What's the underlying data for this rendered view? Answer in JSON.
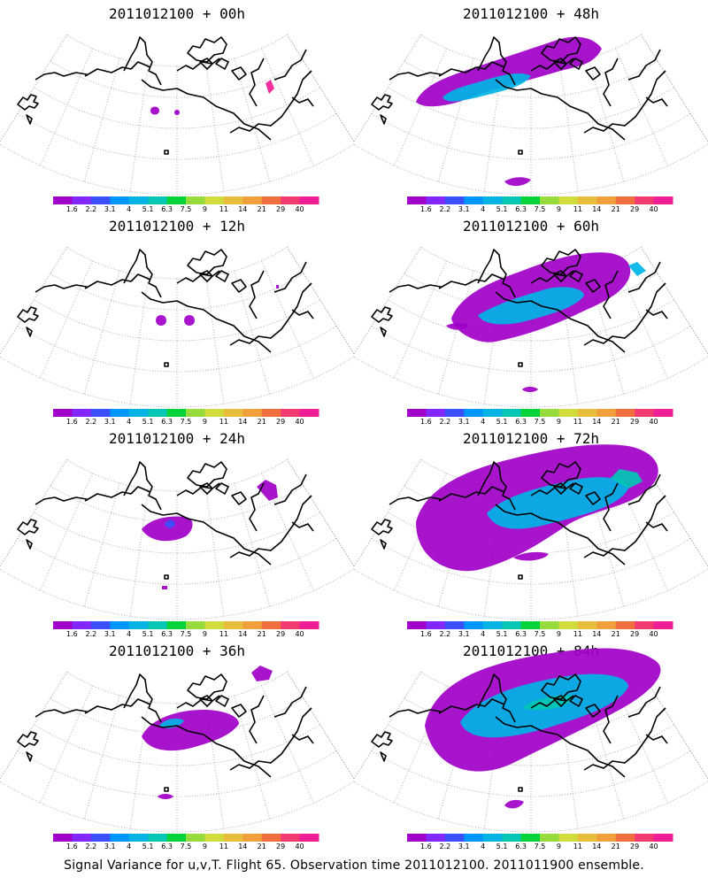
{
  "panels": [
    {
      "title": "2011012100 + 00h",
      "lead": "00h"
    },
    {
      "title": "2011012100 + 48h",
      "lead": "48h"
    },
    {
      "title": "2011012100 + 12h",
      "lead": "12h"
    },
    {
      "title": "2011012100 + 60h",
      "lead": "60h"
    },
    {
      "title": "2011012100 + 24h",
      "lead": "24h"
    },
    {
      "title": "2011012100 + 72h",
      "lead": "72h"
    },
    {
      "title": "2011012100 + 36h",
      "lead": "36h"
    },
    {
      "title": "2011012100 + 84h",
      "lead": "84h"
    }
  ],
  "colorbar": {
    "labels": [
      "1.6",
      "2.2",
      "3.1",
      "4",
      "5.1",
      "6.3",
      "7.5",
      "9",
      "11",
      "14",
      "21",
      "29",
      "40"
    ],
    "colors": [
      "#a000c8",
      "#8228ff",
      "#3c50ff",
      "#0096ff",
      "#00b4e6",
      "#00c8b4",
      "#00d23c",
      "#96dc3c",
      "#d2dc3c",
      "#e6be3c",
      "#f0a03c",
      "#f06e3c",
      "#f03c6e",
      "#f01e96"
    ]
  },
  "caption": "Signal Variance for u,v,T. Flight 65. Observation time 2011012100. 2011011900 ensemble."
}
